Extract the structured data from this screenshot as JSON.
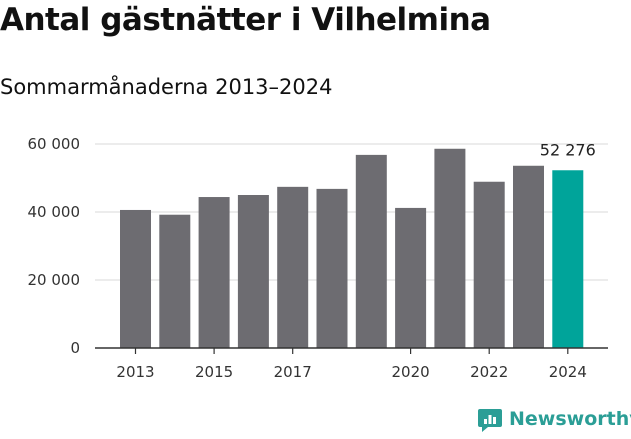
{
  "header": {
    "title": "Antal gästnätter i Vilhelmina",
    "subtitle": "Sommarmånaderna 2013–2024"
  },
  "brand": {
    "name": "Newsworthy",
    "icon": "newsworthy-bar-icon",
    "color": "#2b9e96"
  },
  "colors": {
    "bar": "#6d6c71",
    "highlight": "#00a49a",
    "grid": "#d9d9d9",
    "axis": "#333333"
  },
  "chart_data": {
    "type": "bar",
    "title": "Antal gästnätter i Vilhelmina",
    "subtitle": "Sommarmånaderna 2013–2024",
    "categories": [
      "2013",
      "2014",
      "2015",
      "2016",
      "2017",
      "2018",
      "2019",
      "2020",
      "2021",
      "2022",
      "2023",
      "2024"
    ],
    "x_tick_labels": [
      "2013",
      "",
      "2015",
      "",
      "2017",
      "",
      "",
      "2020",
      "",
      "2022",
      "",
      "2024"
    ],
    "values": [
      40600,
      39200,
      44400,
      45000,
      47400,
      46800,
      56800,
      41200,
      58600,
      48900,
      53600,
      52276
    ],
    "highlight_index": 11,
    "data_labels": [
      {
        "index": 11,
        "text": "52 276"
      }
    ],
    "y_ticks": [
      0,
      20000,
      40000,
      60000
    ],
    "y_tick_labels": [
      "0",
      "20 000",
      "40 000",
      "60 000"
    ],
    "ylim": [
      0,
      60000
    ],
    "xlabel": "",
    "ylabel": "",
    "grid": true,
    "legend": "none"
  }
}
